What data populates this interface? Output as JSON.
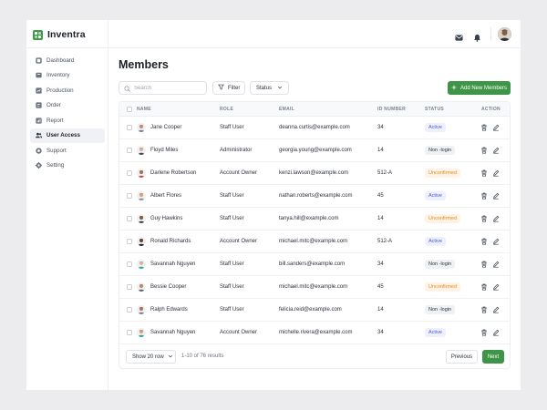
{
  "app": {
    "name": "Inventra"
  },
  "colors": {
    "accent": "#3e9447",
    "active_badge": "#4e5bd4",
    "unconfirmed_badge": "#e48b25"
  },
  "sidebar": {
    "items": [
      {
        "label": "Dashboard",
        "icon": "dashboard-icon",
        "active": false
      },
      {
        "label": "Inventory",
        "icon": "inventory-icon",
        "active": false
      },
      {
        "label": "Production",
        "icon": "production-icon",
        "active": false
      },
      {
        "label": "Order",
        "icon": "order-icon",
        "active": false
      },
      {
        "label": "Report",
        "icon": "report-icon",
        "active": false
      },
      {
        "label": "User Access",
        "icon": "users-icon",
        "active": true
      },
      {
        "label": "Support",
        "icon": "support-icon",
        "active": false
      },
      {
        "label": "Setting",
        "icon": "gear-icon",
        "active": false
      }
    ]
  },
  "topbar": {
    "icons": [
      "mail-icon",
      "bell-icon"
    ],
    "avatar": "user-avatar"
  },
  "page": {
    "title": "Members"
  },
  "toolbar": {
    "search_placeholder": "Search",
    "filter_label": "Filter",
    "status_label": "Status",
    "add_label": "Add New Members"
  },
  "table": {
    "headers": {
      "name": "NAME",
      "role": "ROLE",
      "email": "EMAIL",
      "id": "ID NUMBER",
      "status": "STATUS",
      "action": "ACTION"
    },
    "rows": [
      {
        "name": "Jane Cooper",
        "role": "Staff User",
        "email": "deanna.curtis@example.com",
        "id": "34",
        "status": "Active"
      },
      {
        "name": "Floyd Miles",
        "role": "Administrator",
        "email": "georgia.young@example.com",
        "id": "14",
        "status": "Non -login"
      },
      {
        "name": "Darlene Robertson",
        "role": "Account Owner",
        "email": "kenzi.lawson@example.com",
        "id": "512-A",
        "status": "Unconfirmed"
      },
      {
        "name": "Albert Flores",
        "role": "Staff User",
        "email": "nathan.roberts@example.com",
        "id": "45",
        "status": "Active"
      },
      {
        "name": "Guy Hawkins",
        "role": "Staff User",
        "email": "tanya.hill@example.com",
        "id": "14",
        "status": "Unconfirmed"
      },
      {
        "name": "Ronald Richards",
        "role": "Account Owner",
        "email": "michael.mitc@example.com",
        "id": "512-A",
        "status": "Active"
      },
      {
        "name": "Savannah Nguyen",
        "role": "Staff User",
        "email": "bill.sanders@example.com",
        "id": "34",
        "status": "Non -login"
      },
      {
        "name": "Bessie Cooper",
        "role": "Staff User",
        "email": "michael.mitc@example.com",
        "id": "45",
        "status": "Unconfirmed"
      },
      {
        "name": "Ralph Edwards",
        "role": "Staff User",
        "email": "felicia.reid@example.com",
        "id": "14",
        "status": "Non -login"
      },
      {
        "name": "Savannah Nguyen",
        "role": "Account Owner",
        "email": "michelle.rivera@example.com",
        "id": "34",
        "status": "Active"
      }
    ]
  },
  "footer": {
    "rows_per_page": "Show 20 row",
    "results": "1-10 of 76 results",
    "prev_label": "Previous",
    "next_label": "Next"
  }
}
